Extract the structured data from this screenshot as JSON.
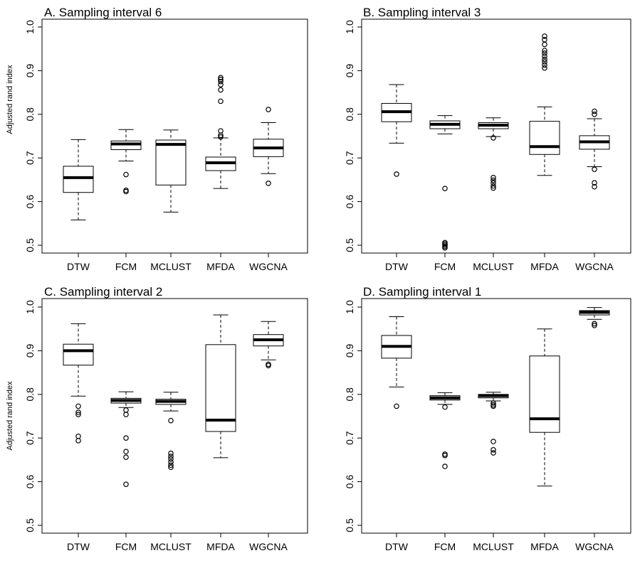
{
  "figure": {
    "ylabel": "Adjusted rand index",
    "categories": [
      "DTW",
      "FCM",
      "MCLUST",
      "MFDA",
      "WGCNA"
    ],
    "yticks": [
      "0.5",
      "0.6",
      "0.7",
      "0.8",
      "0.9",
      "1.0"
    ]
  },
  "chart_data": [
    {
      "type": "boxplot",
      "title": "A. Sampling interval 6",
      "ylabel": "Adjusted rand index",
      "ylim": [
        0.5,
        1.0
      ],
      "categories": [
        "DTW",
        "FCM",
        "MCLUST",
        "MFDA",
        "WGCNA"
      ],
      "boxes": [
        {
          "name": "DTW",
          "min": 0.558,
          "q1": 0.621,
          "median": 0.655,
          "q3": 0.681,
          "max": 0.742,
          "outliers": []
        },
        {
          "name": "FCM",
          "min": 0.693,
          "q1": 0.719,
          "median": 0.732,
          "q3": 0.739,
          "max": 0.765,
          "outliers": [
            0.662,
            0.626,
            0.623
          ]
        },
        {
          "name": "MCLUST",
          "min": 0.576,
          "q1": 0.638,
          "median": 0.731,
          "q3": 0.741,
          "max": 0.764,
          "outliers": []
        },
        {
          "name": "MFDA",
          "min": 0.63,
          "q1": 0.671,
          "median": 0.689,
          "q3": 0.702,
          "max": 0.746,
          "outliers": [
            0.884,
            0.88,
            0.875,
            0.868,
            0.856,
            0.83,
            0.762,
            0.752,
            0.748
          ]
        },
        {
          "name": "WGCNA",
          "min": 0.664,
          "q1": 0.703,
          "median": 0.723,
          "q3": 0.743,
          "max": 0.781,
          "outliers": [
            0.811,
            0.642
          ]
        }
      ]
    },
    {
      "type": "boxplot",
      "title": "B. Sampling interval 3",
      "ylabel": "",
      "ylim": [
        0.5,
        1.0
      ],
      "categories": [
        "DTW",
        "FCM",
        "MCLUST",
        "MFDA",
        "WGCNA"
      ],
      "boxes": [
        {
          "name": "DTW",
          "min": 0.734,
          "q1": 0.783,
          "median": 0.806,
          "q3": 0.825,
          "max": 0.868,
          "outliers": [
            0.663
          ]
        },
        {
          "name": "FCM",
          "min": 0.755,
          "q1": 0.767,
          "median": 0.777,
          "q3": 0.785,
          "max": 0.797,
          "outliers": [
            0.63,
            0.506,
            0.503,
            0.5,
            0.497,
            0.494
          ]
        },
        {
          "name": "MCLUST",
          "min": 0.749,
          "q1": 0.767,
          "median": 0.775,
          "q3": 0.781,
          "max": 0.792,
          "outliers": [
            0.746,
            0.655,
            0.649,
            0.643,
            0.636,
            0.631
          ]
        },
        {
          "name": "MFDA",
          "min": 0.66,
          "q1": 0.708,
          "median": 0.726,
          "q3": 0.784,
          "max": 0.817,
          "outliers": [
            0.979,
            0.971,
            0.96,
            0.946,
            0.94,
            0.933,
            0.926,
            0.92,
            0.913,
            0.906
          ]
        },
        {
          "name": "WGCNA",
          "min": 0.68,
          "q1": 0.72,
          "median": 0.737,
          "q3": 0.751,
          "max": 0.79,
          "outliers": [
            0.807,
            0.8,
            0.674,
            0.643,
            0.634
          ]
        }
      ]
    },
    {
      "type": "boxplot",
      "title": "C. Sampling interval 2",
      "ylabel": "Adjusted rand index",
      "ylim": [
        0.5,
        1.0
      ],
      "categories": [
        "DTW",
        "FCM",
        "MCLUST",
        "MFDA",
        "WGCNA"
      ],
      "boxes": [
        {
          "name": "DTW",
          "min": 0.796,
          "q1": 0.867,
          "median": 0.9,
          "q3": 0.915,
          "max": 0.962,
          "outliers": [
            0.773,
            0.759,
            0.754,
            0.704,
            0.694
          ]
        },
        {
          "name": "FCM",
          "min": 0.77,
          "q1": 0.78,
          "median": 0.786,
          "q3": 0.791,
          "max": 0.806,
          "outliers": [
            0.764,
            0.754,
            0.7,
            0.669,
            0.656,
            0.594
          ]
        },
        {
          "name": "MCLUST",
          "min": 0.762,
          "q1": 0.777,
          "median": 0.784,
          "q3": 0.789,
          "max": 0.805,
          "outliers": [
            0.74,
            0.665,
            0.658,
            0.652,
            0.645,
            0.638,
            0.633
          ]
        },
        {
          "name": "MFDA",
          "min": 0.655,
          "q1": 0.715,
          "median": 0.741,
          "q3": 0.914,
          "max": 0.982,
          "outliers": []
        },
        {
          "name": "WGCNA",
          "min": 0.879,
          "q1": 0.911,
          "median": 0.925,
          "q3": 0.937,
          "max": 0.967,
          "outliers": [
            0.869,
            0.866
          ]
        }
      ]
    },
    {
      "type": "boxplot",
      "title": "D. Sampling interval 1",
      "ylabel": "",
      "ylim": [
        0.5,
        1.0
      ],
      "categories": [
        "DTW",
        "FCM",
        "MCLUST",
        "MFDA",
        "WGCNA"
      ],
      "boxes": [
        {
          "name": "DTW",
          "min": 0.817,
          "q1": 0.883,
          "median": 0.91,
          "q3": 0.935,
          "max": 0.978,
          "outliers": [
            0.773
          ]
        },
        {
          "name": "FCM",
          "min": 0.777,
          "q1": 0.787,
          "median": 0.792,
          "q3": 0.797,
          "max": 0.804,
          "outliers": [
            0.771,
            0.663,
            0.66,
            0.635
          ]
        },
        {
          "name": "MCLUST",
          "min": 0.785,
          "q1": 0.792,
          "median": 0.797,
          "q3": 0.8,
          "max": 0.805,
          "outliers": [
            0.78,
            0.776,
            0.773,
            0.692,
            0.673,
            0.666
          ]
        },
        {
          "name": "MFDA",
          "min": 0.59,
          "q1": 0.713,
          "median": 0.744,
          "q3": 0.888,
          "max": 0.95,
          "outliers": []
        },
        {
          "name": "WGCNA",
          "min": 0.972,
          "q1": 0.982,
          "median": 0.988,
          "q3": 0.992,
          "max": 0.999,
          "outliers": [
            0.962,
            0.958
          ]
        }
      ]
    }
  ]
}
